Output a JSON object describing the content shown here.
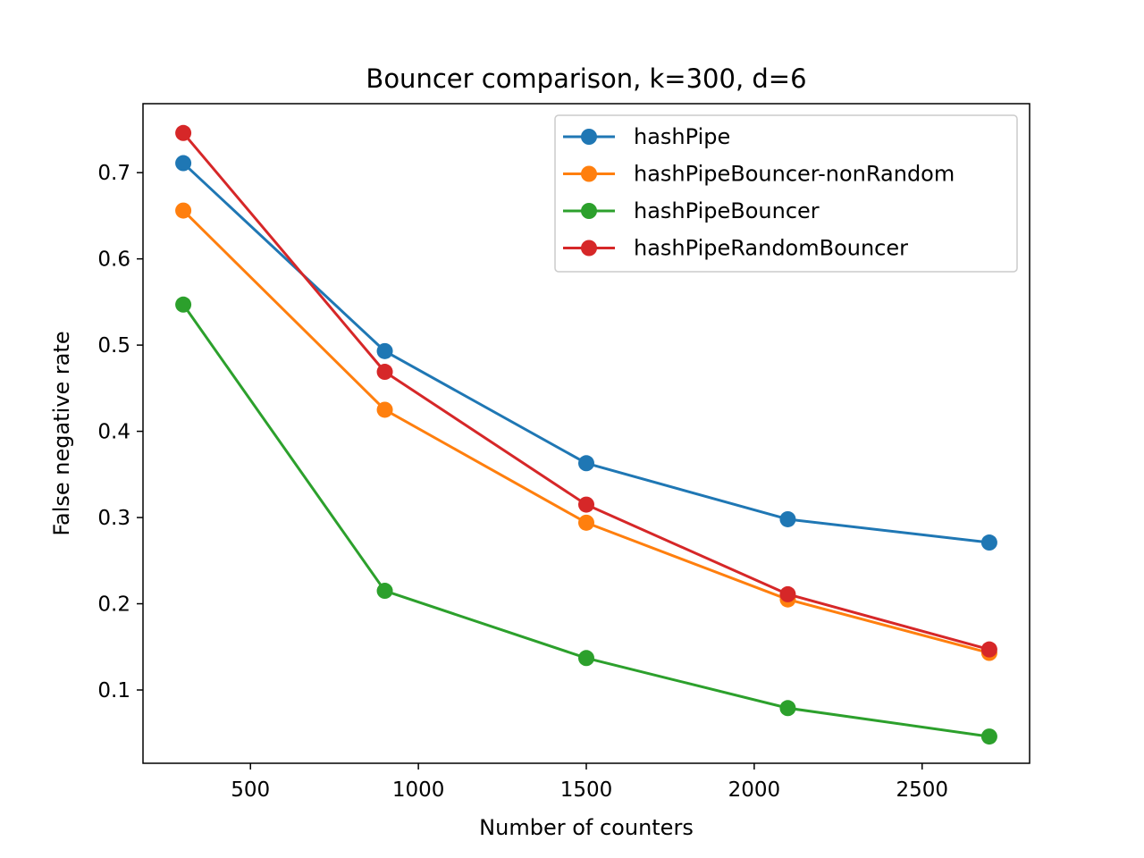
{
  "chart_data": {
    "type": "line",
    "title": "Bouncer comparison, k=300, d=6",
    "xlabel": "Number of counters",
    "ylabel": "False negative rate",
    "xlim": [
      180,
      2820
    ],
    "ylim": [
      0.015,
      0.78
    ],
    "x_ticks": [
      500,
      1000,
      1500,
      2000,
      2500
    ],
    "y_ticks": [
      0.1,
      0.2,
      0.3,
      0.4,
      0.5,
      0.6,
      0.7
    ],
    "x_tick_labels": [
      "500",
      "1000",
      "1500",
      "2000",
      "2500"
    ],
    "y_tick_labels": [
      "0.1",
      "0.2",
      "0.3",
      "0.4",
      "0.5",
      "0.6",
      "0.7"
    ],
    "grid": false,
    "legend_position": "top-right",
    "x": [
      300,
      900,
      1500,
      2100,
      2700
    ],
    "series": [
      {
        "name": "hashPipe",
        "color": "#1f77b4",
        "values": [
          0.711,
          0.493,
          0.363,
          0.298,
          0.271
        ]
      },
      {
        "name": "hashPipeBouncer-nonRandom",
        "color": "#ff7f0e",
        "values": [
          0.656,
          0.425,
          0.294,
          0.205,
          0.143
        ]
      },
      {
        "name": "hashPipeBouncer",
        "color": "#2ca02c",
        "values": [
          0.547,
          0.215,
          0.137,
          0.079,
          0.046
        ]
      },
      {
        "name": "hashPipeRandomBouncer",
        "color": "#d62728",
        "values": [
          0.746,
          0.469,
          0.315,
          0.211,
          0.147
        ]
      }
    ]
  }
}
